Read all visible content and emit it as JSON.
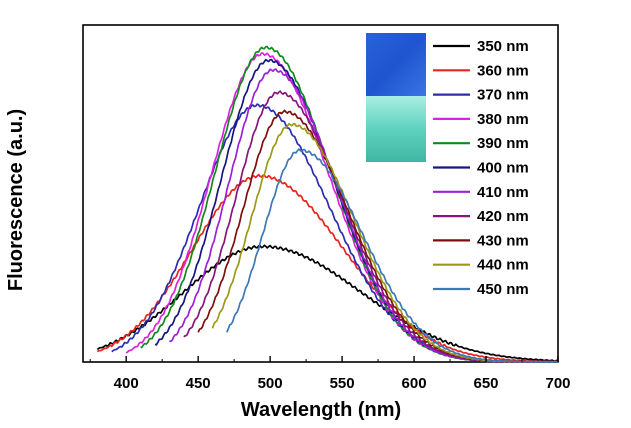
{
  "chart_data": {
    "type": "line",
    "title": "",
    "xlabel": "Wavelength (nm)",
    "ylabel": "Fluorescence (a.u.)",
    "xlim": [
      370,
      700
    ],
    "ylim": [
      0,
      1.05
    ],
    "xticks": [
      400,
      450,
      500,
      550,
      600,
      650,
      700
    ],
    "yticks_shown": false,
    "grid": false,
    "legend_position": "top-right",
    "inset": "photo of two vials: blue (top) and cyan-green (bottom)",
    "series": [
      {
        "name": "350 nm",
        "color": "#000000",
        "start": 380,
        "peak": 495,
        "max": 0.36,
        "sigL": 55,
        "sigR": 68
      },
      {
        "name": "360 nm",
        "color": "#e8241c",
        "start": 380,
        "peak": 493,
        "max": 0.58,
        "sigL": 47,
        "sigR": 58
      },
      {
        "name": "370 nm",
        "color": "#2c2cb0",
        "start": 390,
        "peak": 491,
        "max": 0.8,
        "sigL": 40,
        "sigR": 50
      },
      {
        "name": "380 nm",
        "color": "#e020e0",
        "start": 400,
        "peak": 495,
        "max": 0.96,
        "sigL": 36,
        "sigR": 46
      },
      {
        "name": "390 nm",
        "color": "#0f8a1c",
        "start": 410,
        "peak": 497,
        "max": 0.98,
        "sigL": 35,
        "sigR": 45
      },
      {
        "name": "400 nm",
        "color": "#161680",
        "start": 420,
        "peak": 499,
        "max": 0.94,
        "sigL": 33,
        "sigR": 45
      },
      {
        "name": "410 nm",
        "color": "#9c20d8",
        "start": 430,
        "peak": 502,
        "max": 0.91,
        "sigL": 31,
        "sigR": 44
      },
      {
        "name": "420 nm",
        "color": "#86157e",
        "start": 440,
        "peak": 506,
        "max": 0.84,
        "sigL": 30,
        "sigR": 44
      },
      {
        "name": "430 nm",
        "color": "#7e0e0e",
        "start": 450,
        "peak": 510,
        "max": 0.78,
        "sigL": 29,
        "sigR": 44
      },
      {
        "name": "440 nm",
        "color": "#9a9a18",
        "start": 460,
        "peak": 515,
        "max": 0.74,
        "sigL": 28,
        "sigR": 43
      },
      {
        "name": "450 nm",
        "color": "#3d77b8",
        "start": 470,
        "peak": 521,
        "max": 0.66,
        "sigL": 26,
        "sigR": 43
      }
    ]
  }
}
